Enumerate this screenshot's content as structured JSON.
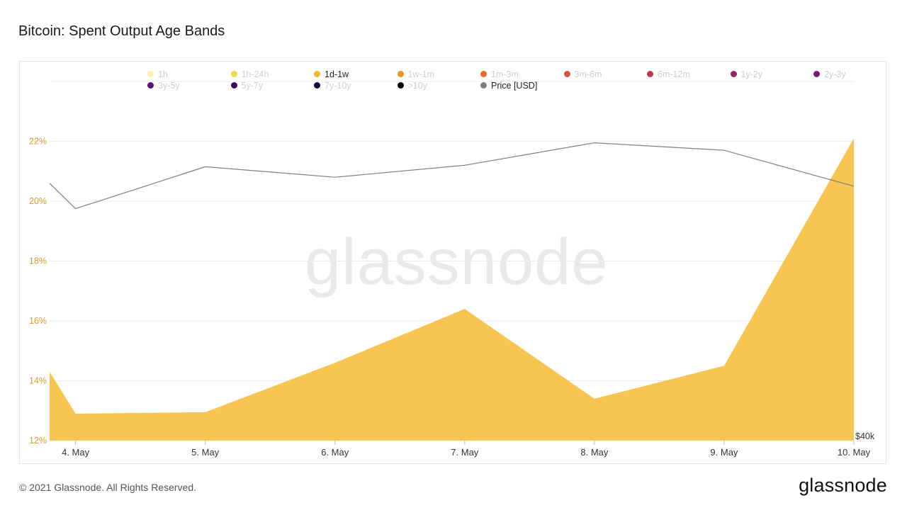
{
  "page": {
    "title": "Bitcoin: Spent Output Age Bands",
    "footer": "© 2021 Glassnode. All Rights Reserved.",
    "brand": "glassnode",
    "watermark": "glassnode"
  },
  "legend": [
    {
      "label": "1h",
      "color": "#fbf3a1",
      "active": false
    },
    {
      "label": "1h-24h",
      "color": "#f1d94c",
      "active": false
    },
    {
      "label": "1d-1w",
      "color": "#f5b52a",
      "active": true
    },
    {
      "label": "1w-1m",
      "color": "#f19220",
      "active": false
    },
    {
      "label": "1m-3m",
      "color": "#e86a2a",
      "active": false
    },
    {
      "label": "3m-6m",
      "color": "#d9533f",
      "active": false
    },
    {
      "label": "6m-12m",
      "color": "#b8384f",
      "active": false
    },
    {
      "label": "1y-2y",
      "color": "#95245f",
      "active": false
    },
    {
      "label": "2y-3y",
      "color": "#7a1a6e",
      "active": false
    },
    {
      "label": "3y-5y",
      "color": "#5a1177",
      "active": false
    },
    {
      "label": "5y-7y",
      "color": "#3a0c5c",
      "active": false
    },
    {
      "label": "7y-10y",
      "color": "#1c0838",
      "active": false
    },
    {
      "label": ">10y",
      "color": "#000000",
      "active": false
    },
    {
      "label": "Price [USD]",
      "color": "#7f7f7f",
      "active": true
    }
  ],
  "chart_data": {
    "type": "area",
    "categories": [
      "4. May",
      "5. May",
      "6. May",
      "7. May",
      "8. May",
      "9. May",
      "10. May"
    ],
    "series": [
      {
        "name": "1d-1w",
        "color": "#f9c552",
        "x": [
          3.8,
          4.0,
          5.0,
          6.0,
          7.0,
          8.0,
          9.0,
          10.0
        ],
        "values": [
          14.3,
          12.9,
          12.95,
          14.6,
          16.4,
          13.4,
          14.5,
          22.1
        ]
      },
      {
        "name": "Price [USD]",
        "color": "#7f7f7f",
        "axis": "right",
        "x": [
          3.8,
          4.0,
          5.0,
          6.0,
          7.0,
          8.0,
          9.0,
          10.0
        ],
        "values": [
          57200,
          55500,
          58300,
          57600,
          58400,
          59900,
          59400,
          57000
        ]
      }
    ],
    "y_ticks": [
      "12%",
      "14%",
      "16%",
      "18%",
      "20%",
      "22%"
    ],
    "y_tick_values": [
      12,
      14,
      16,
      18,
      20,
      22
    ],
    "ylim": [
      12,
      24
    ],
    "xlim": [
      3.8,
      10.0
    ],
    "right_axis": {
      "ticks": [
        "$40k"
      ],
      "tick_values": [
        40000
      ],
      "ylim": [
        40000,
        64000
      ]
    },
    "tick_color": "#d99a2b",
    "grid": true
  }
}
